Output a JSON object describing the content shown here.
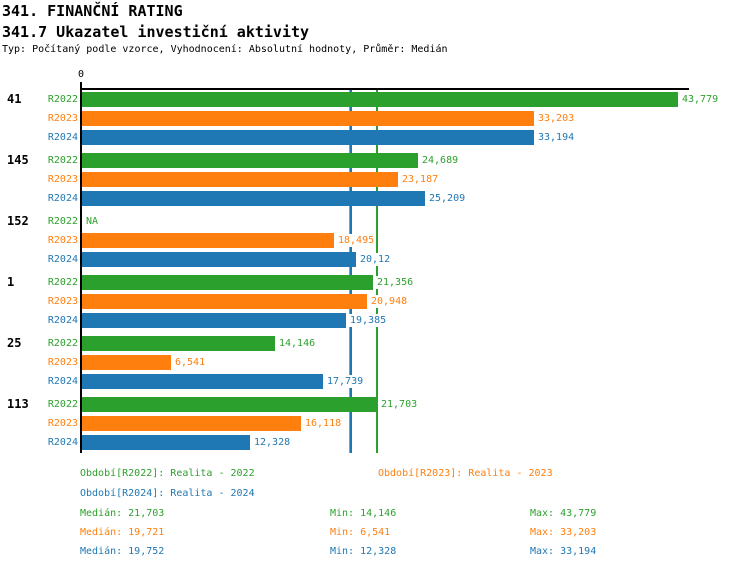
{
  "header": {
    "title": "341. FINANČNÍ RATING",
    "subtitle": "341.7 Ukazatel investiční aktivity",
    "meta": "Typ: Počítaný podle vzorce, Vyhodnocení: Absolutní hodnoty, Průměr: Medián"
  },
  "chart_data": {
    "type": "bar",
    "orientation": "horizontal",
    "title": "341.7 Ukazatel investiční aktivity",
    "categories": [
      "41",
      "145",
      "152",
      "1",
      "25",
      "113"
    ],
    "series": [
      {
        "name": "R2022",
        "color": "#2CA02C",
        "values": [
          43.779,
          24.689,
          null,
          21.356,
          14.146,
          21.703
        ],
        "value_labels": [
          "43,779",
          "24,689",
          "NA",
          "21,356",
          "14,146",
          "21,703"
        ]
      },
      {
        "name": "R2023",
        "color": "#FF7F0E",
        "values": [
          33.203,
          23.187,
          18.495,
          20.948,
          6.541,
          16.118
        ],
        "value_labels": [
          "33,203",
          "23,187",
          "18,495",
          "20,948",
          "6,541",
          "16,118"
        ]
      },
      {
        "name": "R2024",
        "color": "#1F77B4",
        "values": [
          33.194,
          25.209,
          20.12,
          19.385,
          17.739,
          12.328
        ],
        "value_labels": [
          "33,194",
          "25,209",
          "20,12",
          "19,385",
          "17,739",
          "12,328"
        ]
      }
    ],
    "axis": {
      "zero_label": "0",
      "xlim": [
        0,
        44.6
      ],
      "grid": false
    },
    "reference_lines": [
      {
        "series": "R2023",
        "label": "Medián R2023",
        "value": 19.721,
        "color": "#FF7F0E"
      },
      {
        "series": "R2024",
        "label": "Medián R2024",
        "value": 19.752,
        "color": "#1F77B4"
      },
      {
        "series": "R2022",
        "label": "Medián R2022",
        "value": 21.703,
        "color": "#2CA02C"
      }
    ],
    "legend_position": "bottom"
  },
  "legend": {
    "items": [
      {
        "label": "Období[R2022]: Realita - 2022",
        "color": "#2CA02C"
      },
      {
        "label": "Období[R2023]: Realita - 2023",
        "color": "#FF7F0E"
      },
      {
        "label": "Období[R2024]: Realita - 2024",
        "color": "#1F77B4"
      }
    ]
  },
  "stats": {
    "rows": [
      {
        "median": "Medián: 21,703",
        "min": "Min: 14,146",
        "max": "Max: 43,779",
        "color": "#2CA02C"
      },
      {
        "median": "Medián: 19,721",
        "min": "Min: 6,541",
        "max": "Max: 33,203",
        "color": "#FF7F0E"
      },
      {
        "median": "Medián: 19,752",
        "min": "Min: 12,328",
        "max": "Max: 33,194",
        "color": "#1F77B4"
      }
    ]
  }
}
